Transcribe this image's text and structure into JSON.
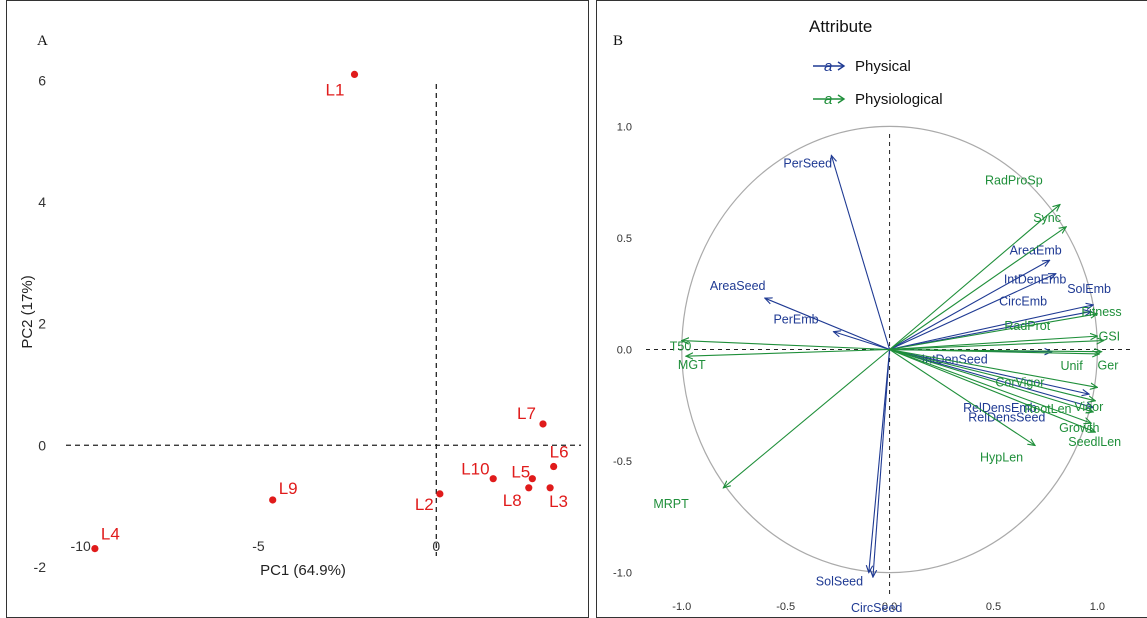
{
  "colors": {
    "physical": "#1f3a93",
    "physiological": "#1f8f3a",
    "score_points": "#e01b1b",
    "circle": "#aaaaaa",
    "axis_text": "#333333"
  },
  "panel_a": {
    "letter": "A"
  },
  "panel_b": {
    "letter": "B",
    "legend_title": "Attribute",
    "legend_glyph": "a",
    "legend_items": [
      {
        "label": "Physical",
        "color": "#1f3a93"
      },
      {
        "label": "Physiological",
        "color": "#1f8f3a"
      }
    ]
  },
  "chart_data": [
    {
      "type": "scatter",
      "title": "",
      "xlabel": "PC1 (64.9%)",
      "ylabel": "PC2 (17%)",
      "xlim": [
        -10.3,
        3.9
      ],
      "ylim": [
        -2.2,
        6.6
      ],
      "xticks": [
        -10,
        -5,
        0
      ],
      "yticks": [
        -2,
        0,
        2,
        4,
        6
      ],
      "reference_lines": {
        "x": 0,
        "y": 0,
        "style": "dashed"
      },
      "points": [
        {
          "label": "L1",
          "x": -2.3,
          "y": 6.1
        },
        {
          "label": "L2",
          "x": 0.1,
          "y": -0.8
        },
        {
          "label": "L3",
          "x": 3.2,
          "y": -0.7
        },
        {
          "label": "L4",
          "x": -9.6,
          "y": -1.7
        },
        {
          "label": "L5",
          "x": 2.7,
          "y": -0.55
        },
        {
          "label": "L6",
          "x": 3.3,
          "y": -0.35
        },
        {
          "label": "L7",
          "x": 3.0,
          "y": 0.35
        },
        {
          "label": "L8",
          "x": 2.6,
          "y": -0.7
        },
        {
          "label": "L9",
          "x": -4.6,
          "y": -0.9
        },
        {
          "label": "L10",
          "x": 1.6,
          "y": -0.55
        }
      ]
    },
    {
      "type": "biplot-vectors",
      "title": "",
      "xlabel": "",
      "ylabel": "",
      "xlim": [
        -1.1,
        1.08
      ],
      "ylim": [
        -1.06,
        1.06
      ],
      "xticks": [
        -1.0,
        -0.5,
        0.0,
        0.5,
        1.0
      ],
      "yticks": [
        -1.0,
        -0.5,
        0.0,
        0.5,
        1.0
      ],
      "xtick_labels": [
        "-1.0",
        "-0.5",
        "0.0",
        "0.5",
        "1.0"
      ],
      "ytick_labels": [
        "-1.0",
        "-0.5",
        "0.0",
        "0.5",
        "1.0"
      ],
      "unit_circle": true,
      "reference_lines": {
        "x": 0,
        "y": 0,
        "style": "dashed"
      },
      "series": [
        {
          "name": "Physical",
          "vectors": [
            {
              "label": "PerSeed",
              "x": -0.28,
              "y": 0.87
            },
            {
              "label": "AreaSeed",
              "x": -0.6,
              "y": 0.23
            },
            {
              "label": "PerEmb",
              "x": -0.27,
              "y": 0.08
            },
            {
              "label": "AreaEmb",
              "x": 0.77,
              "y": 0.4
            },
            {
              "label": "IntDenEmb",
              "x": 0.8,
              "y": 0.34
            },
            {
              "label": "SolEmb",
              "x": 0.98,
              "y": 0.2
            },
            {
              "label": "CircEmb",
              "x": 0.97,
              "y": 0.17
            },
            {
              "label": "IntDenSeed",
              "x": 0.78,
              "y": -0.01
            },
            {
              "label": "RelDensEmb",
              "x": 0.96,
              "y": -0.2
            },
            {
              "label": "RelDensSeed",
              "x": 0.98,
              "y": -0.26
            },
            {
              "label": "SolSeed",
              "x": -0.1,
              "y": -1.0
            },
            {
              "label": "CircSeed",
              "x": -0.08,
              "y": -1.02
            }
          ]
        },
        {
          "name": "Physiological",
          "vectors": [
            {
              "label": "RadProSp",
              "x": 0.82,
              "y": 0.65
            },
            {
              "label": "Sync",
              "x": 0.85,
              "y": 0.55
            },
            {
              "label": "Fitness",
              "x": 1.0,
              "y": 0.16
            },
            {
              "label": "RadProt",
              "x": 1.0,
              "y": 0.06
            },
            {
              "label": "GSI",
              "x": 1.03,
              "y": 0.04
            },
            {
              "label": "Ger",
              "x": 1.02,
              "y": -0.01
            },
            {
              "label": "Unif",
              "x": 1.01,
              "y": -0.02
            },
            {
              "label": "CorVigor",
              "x": 1.0,
              "y": -0.17
            },
            {
              "label": "Vigor",
              "x": 0.99,
              "y": -0.23
            },
            {
              "label": "RootLen",
              "x": 0.98,
              "y": -0.28
            },
            {
              "label": "Growth",
              "x": 0.97,
              "y": -0.33
            },
            {
              "label": "SeedlLen",
              "x": 0.99,
              "y": -0.37
            },
            {
              "label": "HypLen",
              "x": 0.7,
              "y": -0.43
            },
            {
              "label": "T50",
              "x": -1.0,
              "y": 0.04
            },
            {
              "label": "MGT",
              "x": -0.98,
              "y": -0.03
            },
            {
              "label": "MRPT",
              "x": -0.8,
              "y": -0.62
            }
          ]
        }
      ]
    }
  ]
}
